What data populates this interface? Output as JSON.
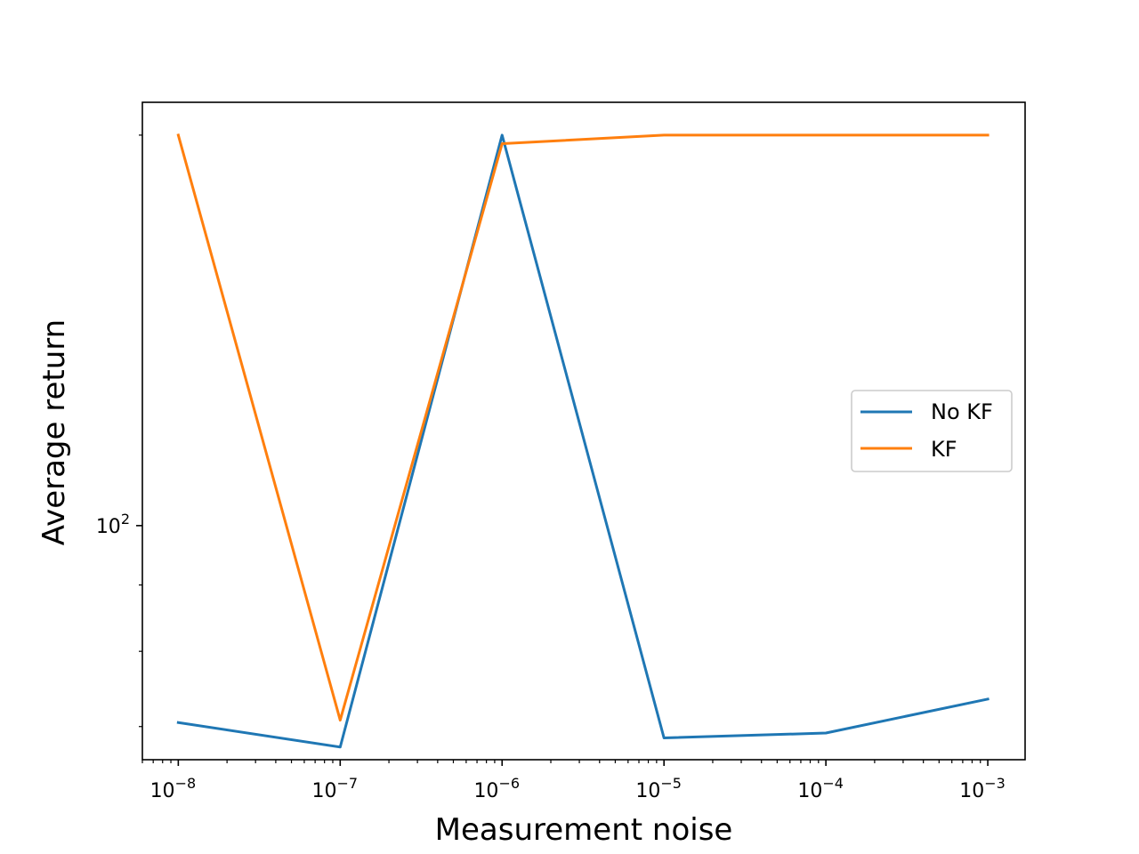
{
  "chart_data": {
    "type": "line",
    "title": "",
    "xlabel": "Measurement noise",
    "ylabel": "Average return",
    "x_scale": "log",
    "y_scale": "log",
    "x": [
      1e-08,
      1e-07,
      1e-06,
      1e-05,
      0.0001,
      0.001
    ],
    "xlim": [
      6e-09,
      0.0017
    ],
    "ylim": [
      66,
      212
    ],
    "x_tick_labels": [
      {
        "base": "10",
        "exp": "−8",
        "value": 1e-08
      },
      {
        "base": "10",
        "exp": "−7",
        "value": 1e-07
      },
      {
        "base": "10",
        "exp": "−6",
        "value": 1e-06
      },
      {
        "base": "10",
        "exp": "−5",
        "value": 1e-05
      },
      {
        "base": "10",
        "exp": "−4",
        "value": 0.0001
      },
      {
        "base": "10",
        "exp": "−3",
        "value": 0.001
      }
    ],
    "y_tick_labels": [
      {
        "base": "10",
        "exp": "2",
        "value": 100
      }
    ],
    "grid": false,
    "legend_position": "center-right",
    "series": [
      {
        "name": "No KF",
        "color": "#1f77b4",
        "values": [
          70.5,
          67.5,
          200,
          68.6,
          69.2,
          73.5
        ]
      },
      {
        "name": "KF",
        "color": "#ff7f0e",
        "values": [
          200,
          70.8,
          197,
          200,
          200,
          200
        ]
      }
    ]
  }
}
